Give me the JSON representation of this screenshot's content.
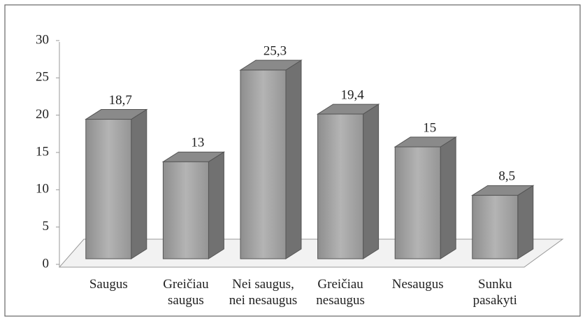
{
  "chart_data": {
    "type": "bar3d",
    "categories": [
      "Saugus",
      "Greičiau\nsaugus",
      "Nei saugus,\nnei nesaugus",
      "Greičiau\nnesaugus",
      "Nesaugus",
      "Sunku\npasakyti"
    ],
    "values": [
      18.7,
      13,
      25.3,
      19.4,
      15,
      8.5
    ],
    "value_labels": [
      "18,7",
      "13",
      "25,3",
      "19,4",
      "15",
      "8,5"
    ],
    "color": "#a3a3a3",
    "ylim": [
      0,
      30
    ],
    "yticks": [
      0,
      5,
      10,
      15,
      20,
      25,
      30
    ]
  }
}
